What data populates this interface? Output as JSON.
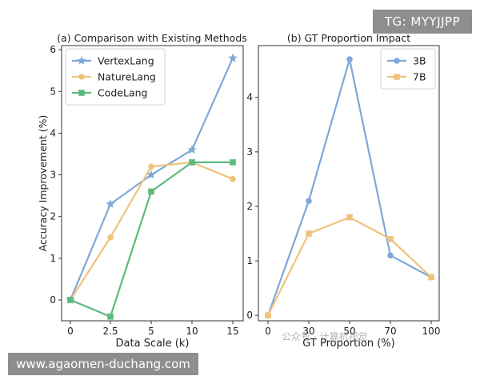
{
  "watermarks": {
    "top_right": "TG: MYYJJPP",
    "bottom_left": "www.agaomen-duchang.com",
    "faint": "公众号 · 计算机视觉"
  },
  "chart_data": [
    {
      "type": "line",
      "title": "(a) Comparison with Existing Methods",
      "xlabel": "Data Scale (k)",
      "ylabel": "Accuracy Improvement (%)",
      "categories": [
        "0",
        "2.5",
        "5",
        "10",
        "15"
      ],
      "ylim": [
        -0.5,
        6.1
      ],
      "yticks": [
        "0",
        "1",
        "2",
        "3",
        "4",
        "5",
        "6"
      ],
      "legend_position": "top-left",
      "series": [
        {
          "name": "VertexLang",
          "values": [
            0,
            2.3,
            3.0,
            3.6,
            5.8
          ],
          "color": "#7fa7d9",
          "marker": "star"
        },
        {
          "name": "NatureLang",
          "values": [
            0,
            1.5,
            3.2,
            3.3,
            2.9
          ],
          "color": "#f0c27b",
          "marker": "circle"
        },
        {
          "name": "CodeLang",
          "values": [
            0,
            -0.4,
            2.6,
            3.3,
            3.3
          ],
          "color": "#5dba7d",
          "marker": "square"
        }
      ]
    },
    {
      "type": "line",
      "title": "(b) GT Proportion Impact",
      "xlabel": "GT Proportion (%)",
      "ylabel": "",
      "categories": [
        "0",
        "30",
        "50",
        "70",
        "100"
      ],
      "ylim": [
        -0.1,
        4.95
      ],
      "yticks": [
        "0",
        "1",
        "2",
        "3",
        "4"
      ],
      "legend_position": "top-right",
      "series": [
        {
          "name": "3B",
          "values": [
            0,
            2.1,
            4.7,
            1.1,
            0.7
          ],
          "color": "#7fa7d9",
          "marker": "circle"
        },
        {
          "name": "7B",
          "values": [
            0,
            1.5,
            1.8,
            1.4,
            0.7
          ],
          "color": "#f0c27b",
          "marker": "square"
        }
      ]
    }
  ]
}
